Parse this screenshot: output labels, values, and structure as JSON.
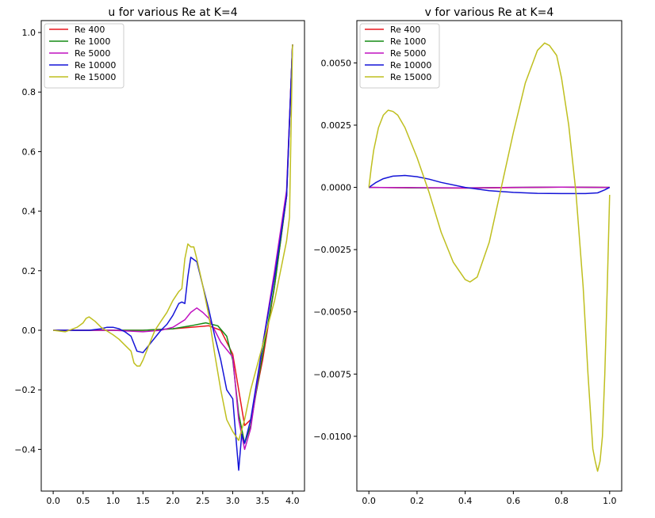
{
  "chart_data": [
    {
      "type": "line",
      "title": "u for various Re at K=4",
      "xlabel": "",
      "ylabel": "",
      "xlim": [
        -0.2,
        4.2
      ],
      "ylim": [
        -0.54,
        1.04
      ],
      "xticks": [
        0.0,
        0.5,
        1.0,
        1.5,
        2.0,
        2.5,
        3.0,
        3.5,
        4.0
      ],
      "xtick_labels": [
        "0.0",
        "0.5",
        "1.0",
        "1.5",
        "2.0",
        "2.5",
        "3.0",
        "3.5",
        "4.0"
      ],
      "yticks": [
        -0.4,
        -0.2,
        0.0,
        0.2,
        0.4,
        0.6,
        0.8,
        1.0
      ],
      "ytick_labels": [
        "−0.4",
        "−0.2",
        "0.0",
        "0.2",
        "0.4",
        "0.6",
        "0.8",
        "1.0"
      ],
      "grid": false,
      "legend_position": "top-left",
      "series": [
        {
          "name": "Re 400",
          "color": "#e8161f",
          "x": [
            0.0,
            0.5,
            1.0,
            1.5,
            2.0,
            2.3,
            2.6,
            2.8,
            3.0,
            3.1,
            3.2,
            3.3,
            3.5,
            3.7,
            3.9,
            4.0
          ],
          "y": [
            0.0,
            0.0,
            0.0,
            0.0,
            0.005,
            0.01,
            0.015,
            0.0,
            -0.08,
            -0.2,
            -0.32,
            -0.3,
            -0.1,
            0.15,
            0.45,
            0.96
          ]
        },
        {
          "name": "Re 1000",
          "color": "#148c14",
          "x": [
            0.0,
            0.5,
            1.0,
            1.5,
            2.0,
            2.3,
            2.55,
            2.75,
            2.9,
            3.0,
            3.1,
            3.2,
            3.3,
            3.5,
            3.7,
            3.9,
            4.0
          ],
          "y": [
            0.0,
            0.0,
            0.0,
            0.0,
            0.005,
            0.015,
            0.025,
            0.015,
            -0.02,
            -0.1,
            -0.28,
            -0.38,
            -0.32,
            -0.08,
            0.15,
            0.45,
            0.96
          ]
        },
        {
          "name": "Re 5000",
          "color": "#c011c0",
          "x": [
            0.0,
            0.5,
            1.0,
            1.5,
            1.8,
            2.0,
            2.2,
            2.3,
            2.4,
            2.5,
            2.6,
            2.7,
            2.8,
            3.0,
            3.1,
            3.2,
            3.3,
            3.5,
            3.7,
            3.9,
            4.0
          ],
          "y": [
            0.0,
            0.0,
            0.0,
            -0.005,
            0.0,
            0.01,
            0.035,
            0.06,
            0.075,
            0.06,
            0.04,
            0.0,
            -0.04,
            -0.09,
            -0.3,
            -0.4,
            -0.33,
            -0.05,
            0.2,
            0.47,
            0.96
          ]
        },
        {
          "name": "Re 10000",
          "color": "#1414d8",
          "x": [
            0.0,
            0.3,
            0.6,
            0.8,
            0.9,
            1.0,
            1.1,
            1.2,
            1.3,
            1.4,
            1.5,
            1.6,
            1.7,
            1.8,
            1.9,
            2.0,
            2.1,
            2.15,
            2.2,
            2.25,
            2.3,
            2.4,
            2.5,
            2.6,
            2.7,
            2.8,
            2.9,
            3.0,
            3.05,
            3.1,
            3.15,
            3.2,
            3.3,
            3.5,
            3.7,
            3.9,
            4.0
          ],
          "y": [
            0.0,
            0.0,
            0.0,
            0.005,
            0.01,
            0.01,
            0.005,
            -0.005,
            -0.02,
            -0.07,
            -0.075,
            -0.05,
            -0.025,
            0.0,
            0.02,
            0.05,
            0.09,
            0.095,
            0.09,
            0.18,
            0.245,
            0.23,
            0.15,
            0.07,
            -0.02,
            -0.1,
            -0.2,
            -0.23,
            -0.35,
            -0.47,
            -0.35,
            -0.38,
            -0.3,
            -0.05,
            0.18,
            0.45,
            0.96
          ]
        },
        {
          "name": "Re 15000",
          "color": "#bfbf1f",
          "x": [
            0.0,
            0.2,
            0.4,
            0.5,
            0.55,
            0.6,
            0.7,
            0.8,
            1.0,
            1.1,
            1.2,
            1.3,
            1.35,
            1.4,
            1.45,
            1.5,
            1.6,
            1.7,
            1.8,
            1.9,
            2.0,
            2.1,
            2.15,
            2.2,
            2.25,
            2.3,
            2.35,
            2.4,
            2.5,
            2.6,
            2.7,
            2.8,
            2.9,
            3.0,
            3.1,
            3.2,
            3.3,
            3.5,
            3.7,
            3.9,
            3.95,
            4.0
          ],
          "y": [
            0.0,
            -0.005,
            0.01,
            0.025,
            0.04,
            0.045,
            0.03,
            0.01,
            -0.015,
            -0.03,
            -0.05,
            -0.07,
            -0.11,
            -0.12,
            -0.12,
            -0.1,
            -0.05,
            0.0,
            0.03,
            0.06,
            0.1,
            0.13,
            0.14,
            0.24,
            0.29,
            0.28,
            0.28,
            0.24,
            0.15,
            0.05,
            -0.08,
            -0.2,
            -0.3,
            -0.34,
            -0.37,
            -0.3,
            -0.2,
            -0.05,
            0.1,
            0.3,
            0.38,
            0.96
          ]
        }
      ]
    },
    {
      "type": "line",
      "title": "v for various Re at K=4",
      "xlabel": "",
      "ylabel": "",
      "xlim": [
        -0.05,
        1.05
      ],
      "ylim": [
        -0.0122,
        0.0067
      ],
      "xticks": [
        0.0,
        0.2,
        0.4,
        0.6,
        0.8,
        1.0
      ],
      "xtick_labels": [
        "0.0",
        "0.2",
        "0.4",
        "0.6",
        "0.8",
        "1.0"
      ],
      "yticks": [
        -0.01,
        -0.0075,
        -0.005,
        -0.0025,
        0.0,
        0.0025,
        0.005
      ],
      "ytick_labels": [
        "−0.0100",
        "−0.0075",
        "−0.0050",
        "−0.0025",
        "0.0000",
        "0.0025",
        "0.0050"
      ],
      "grid": false,
      "legend_position": "top-left",
      "series": [
        {
          "name": "Re 400",
          "color": "#e8161f",
          "x": [
            0.0,
            0.2,
            0.4,
            0.6,
            0.8,
            1.0
          ],
          "y": [
            0.0,
            -2e-05,
            -3e-05,
            -1e-05,
            1e-05,
            0.0
          ]
        },
        {
          "name": "Re 1000",
          "color": "#148c14",
          "x": [
            0.0,
            0.2,
            0.4,
            0.6,
            0.8,
            1.0
          ],
          "y": [
            0.0,
            -2e-05,
            -2e-05,
            0.0,
            1e-05,
            0.0
          ]
        },
        {
          "name": "Re 5000",
          "color": "#c011c0",
          "x": [
            0.0,
            0.2,
            0.4,
            0.6,
            0.8,
            1.0
          ],
          "y": [
            0.0,
            -1e-05,
            -2e-05,
            0.0,
            1e-05,
            0.0
          ]
        },
        {
          "name": "Re 10000",
          "color": "#1414d8",
          "x": [
            0.0,
            0.03,
            0.06,
            0.1,
            0.15,
            0.2,
            0.25,
            0.3,
            0.4,
            0.5,
            0.6,
            0.7,
            0.8,
            0.9,
            0.95,
            0.98,
            1.0
          ],
          "y": [
            0.0,
            0.0002,
            0.00035,
            0.00045,
            0.00048,
            0.00043,
            0.00033,
            0.0002,
            0.0,
            -0.00013,
            -0.0002,
            -0.00024,
            -0.00025,
            -0.00025,
            -0.00022,
            -0.0001,
            0.0
          ]
        },
        {
          "name": "Re 15000",
          "color": "#bfbf1f",
          "x": [
            0.0,
            0.01,
            0.02,
            0.04,
            0.06,
            0.08,
            0.1,
            0.12,
            0.15,
            0.2,
            0.25,
            0.3,
            0.35,
            0.4,
            0.42,
            0.45,
            0.5,
            0.55,
            0.6,
            0.65,
            0.7,
            0.73,
            0.75,
            0.78,
            0.8,
            0.83,
            0.86,
            0.89,
            0.91,
            0.93,
            0.94,
            0.95,
            0.96,
            0.97,
            0.98,
            0.99,
            1.0
          ],
          "y": [
            0.0,
            0.0008,
            0.0015,
            0.0024,
            0.0029,
            0.0031,
            0.00305,
            0.0029,
            0.0024,
            0.0012,
            -0.0002,
            -0.0018,
            -0.003,
            -0.0037,
            -0.0038,
            -0.0036,
            -0.0022,
            0.0,
            0.0022,
            0.0042,
            0.0055,
            0.0058,
            0.0057,
            0.0053,
            0.0044,
            0.0025,
            -0.0002,
            -0.004,
            -0.0075,
            -0.0105,
            -0.011,
            -0.0114,
            -0.011,
            -0.01,
            -0.0075,
            -0.004,
            -0.0003
          ]
        }
      ]
    }
  ]
}
